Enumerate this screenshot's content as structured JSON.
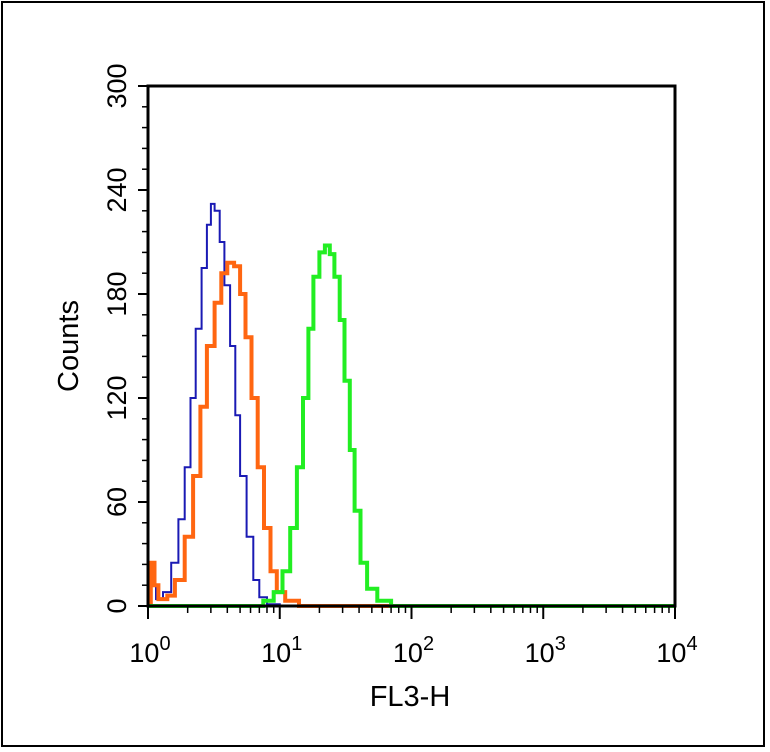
{
  "chart_data": {
    "type": "line",
    "xlabel": "FL3-H",
    "ylabel": "Counts",
    "x_scale": "log",
    "xlim": [
      1,
      10000
    ],
    "ylim": [
      0,
      300
    ],
    "x_ticks": [
      {
        "base": "10",
        "exp": "0"
      },
      {
        "base": "10",
        "exp": "1"
      },
      {
        "base": "10",
        "exp": "2"
      },
      {
        "base": "10",
        "exp": "3"
      },
      {
        "base": "10",
        "exp": "4"
      }
    ],
    "y_ticks": [
      "0",
      "60",
      "120",
      "180",
      "240",
      "300"
    ],
    "grid": false,
    "legend": "none",
    "series": [
      {
        "color": "#1a1ab4",
        "points": [
          [
            1.0,
            20
          ],
          [
            1.05,
            12
          ],
          [
            1.15,
            4
          ],
          [
            1.3,
            8
          ],
          [
            1.5,
            25
          ],
          [
            1.7,
            50
          ],
          [
            1.9,
            80
          ],
          [
            2.1,
            120
          ],
          [
            2.3,
            160
          ],
          [
            2.55,
            195
          ],
          [
            2.8,
            220
          ],
          [
            3.0,
            232
          ],
          [
            3.2,
            228
          ],
          [
            3.5,
            210
          ],
          [
            3.8,
            185
          ],
          [
            4.2,
            150
          ],
          [
            4.6,
            110
          ],
          [
            5.0,
            75
          ],
          [
            5.6,
            40
          ],
          [
            6.3,
            15
          ],
          [
            7.0,
            5
          ],
          [
            8.0,
            1
          ],
          [
            10,
            0
          ],
          [
            10000,
            0
          ]
        ]
      },
      {
        "color": "#ff6611",
        "points": [
          [
            1.0,
            0
          ],
          [
            1.05,
            25
          ],
          [
            1.12,
            12
          ],
          [
            1.2,
            4
          ],
          [
            1.4,
            6
          ],
          [
            1.6,
            15
          ],
          [
            1.9,
            40
          ],
          [
            2.2,
            75
          ],
          [
            2.5,
            115
          ],
          [
            2.8,
            150
          ],
          [
            3.2,
            175
          ],
          [
            3.6,
            192
          ],
          [
            4.0,
            198
          ],
          [
            4.5,
            196
          ],
          [
            5.0,
            180
          ],
          [
            5.5,
            155
          ],
          [
            6.1,
            120
          ],
          [
            6.8,
            80
          ],
          [
            7.6,
            45
          ],
          [
            8.5,
            20
          ],
          [
            9.5,
            8
          ],
          [
            11,
            3
          ],
          [
            14,
            0
          ],
          [
            10000,
            0
          ]
        ]
      },
      {
        "color": "#22ee22",
        "points": [
          [
            1.0,
            0
          ],
          [
            6.0,
            0
          ],
          [
            7.5,
            3
          ],
          [
            9.0,
            8
          ],
          [
            10.5,
            20
          ],
          [
            12.0,
            45
          ],
          [
            13.5,
            80
          ],
          [
            15.0,
            120
          ],
          [
            16.5,
            160
          ],
          [
            18.0,
            190
          ],
          [
            20.0,
            204
          ],
          [
            22.0,
            208
          ],
          [
            24.0,
            203
          ],
          [
            26.0,
            190
          ],
          [
            28.5,
            165
          ],
          [
            31.0,
            130
          ],
          [
            34.0,
            90
          ],
          [
            37.0,
            55
          ],
          [
            41.0,
            25
          ],
          [
            46.0,
            10
          ],
          [
            55.0,
            3
          ],
          [
            70.0,
            0
          ],
          [
            10000,
            0
          ]
        ]
      }
    ]
  },
  "colors": {
    "axis": "#000000",
    "frame": "#000000"
  }
}
